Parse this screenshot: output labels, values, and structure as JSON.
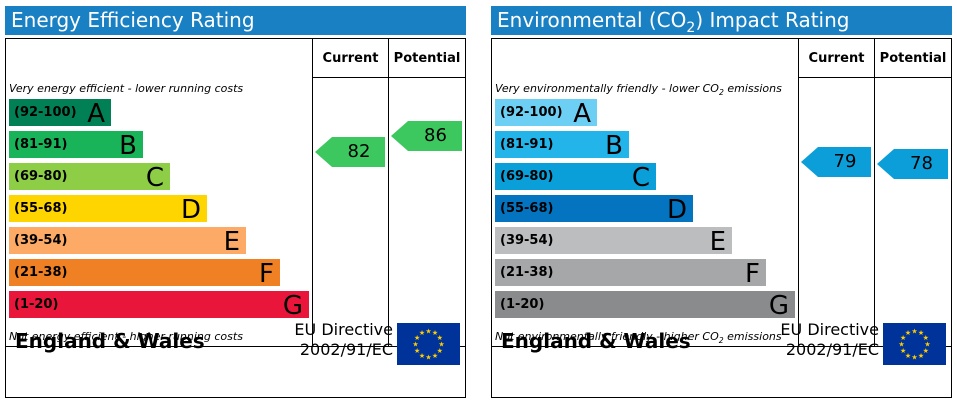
{
  "energy_efficiency": {
    "title": "Energy Efficiency Rating",
    "col_current": "Current",
    "col_potential": "Potential",
    "top_note": "Very energy efficient - lower running costs",
    "bottom_note": "Not energy efficient - higher running costs",
    "bands": [
      {
        "range": "(92-100)",
        "letter": "A",
        "color": "#008054"
      },
      {
        "range": "(81-91)",
        "letter": "B",
        "color": "#19b459"
      },
      {
        "range": "(69-80)",
        "letter": "C",
        "color": "#8dce46"
      },
      {
        "range": "(55-68)",
        "letter": "D",
        "color": "#ffd500"
      },
      {
        "range": "(39-54)",
        "letter": "E",
        "color": "#fcaa65"
      },
      {
        "range": "(21-38)",
        "letter": "F",
        "color": "#ef8023"
      },
      {
        "range": "(1-20)",
        "letter": "G",
        "color": "#e9153b"
      }
    ],
    "current": {
      "value": "82",
      "band": "B",
      "color": "#3cc85e"
    },
    "potential": {
      "value": "86",
      "band": "B",
      "color": "#3cc85e"
    },
    "footer_region": "England & Wales",
    "eu_directive_line1": "EU Directive",
    "eu_directive_line2": "2002/91/EC"
  },
  "environmental_impact": {
    "title_prefix": "Environmental (CO",
    "title_sub": "2",
    "title_suffix": ") Impact Rating",
    "col_current": "Current",
    "col_potential": "Potential",
    "top_note_prefix": "Very environmentally friendly - lower CO",
    "top_note_sub": "2",
    "top_note_suffix": " emissions",
    "bottom_note_prefix": "Not environmentally friendly - higher CO",
    "bottom_note_sub": "2",
    "bottom_note_suffix": " emissions",
    "bands": [
      {
        "range": "(92-100)",
        "letter": "A",
        "color": "#6ecff5"
      },
      {
        "range": "(81-91)",
        "letter": "B",
        "color": "#23b4ea"
      },
      {
        "range": "(69-80)",
        "letter": "C",
        "color": "#0a9fd9"
      },
      {
        "range": "(55-68)",
        "letter": "D",
        "color": "#0474c1"
      },
      {
        "range": "(39-54)",
        "letter": "E",
        "color": "#bbbdbf"
      },
      {
        "range": "(21-38)",
        "letter": "F",
        "color": "#a6a7a9"
      },
      {
        "range": "(1-20)",
        "letter": "G",
        "color": "#8a8b8d"
      }
    ],
    "current": {
      "value": "79",
      "band": "C",
      "color": "#0c9ed8"
    },
    "potential": {
      "value": "78",
      "band": "C",
      "color": "#0c9ed8"
    },
    "footer_region": "England & Wales",
    "eu_directive_line1": "EU Directive",
    "eu_directive_line2": "2002/91/EC"
  }
}
